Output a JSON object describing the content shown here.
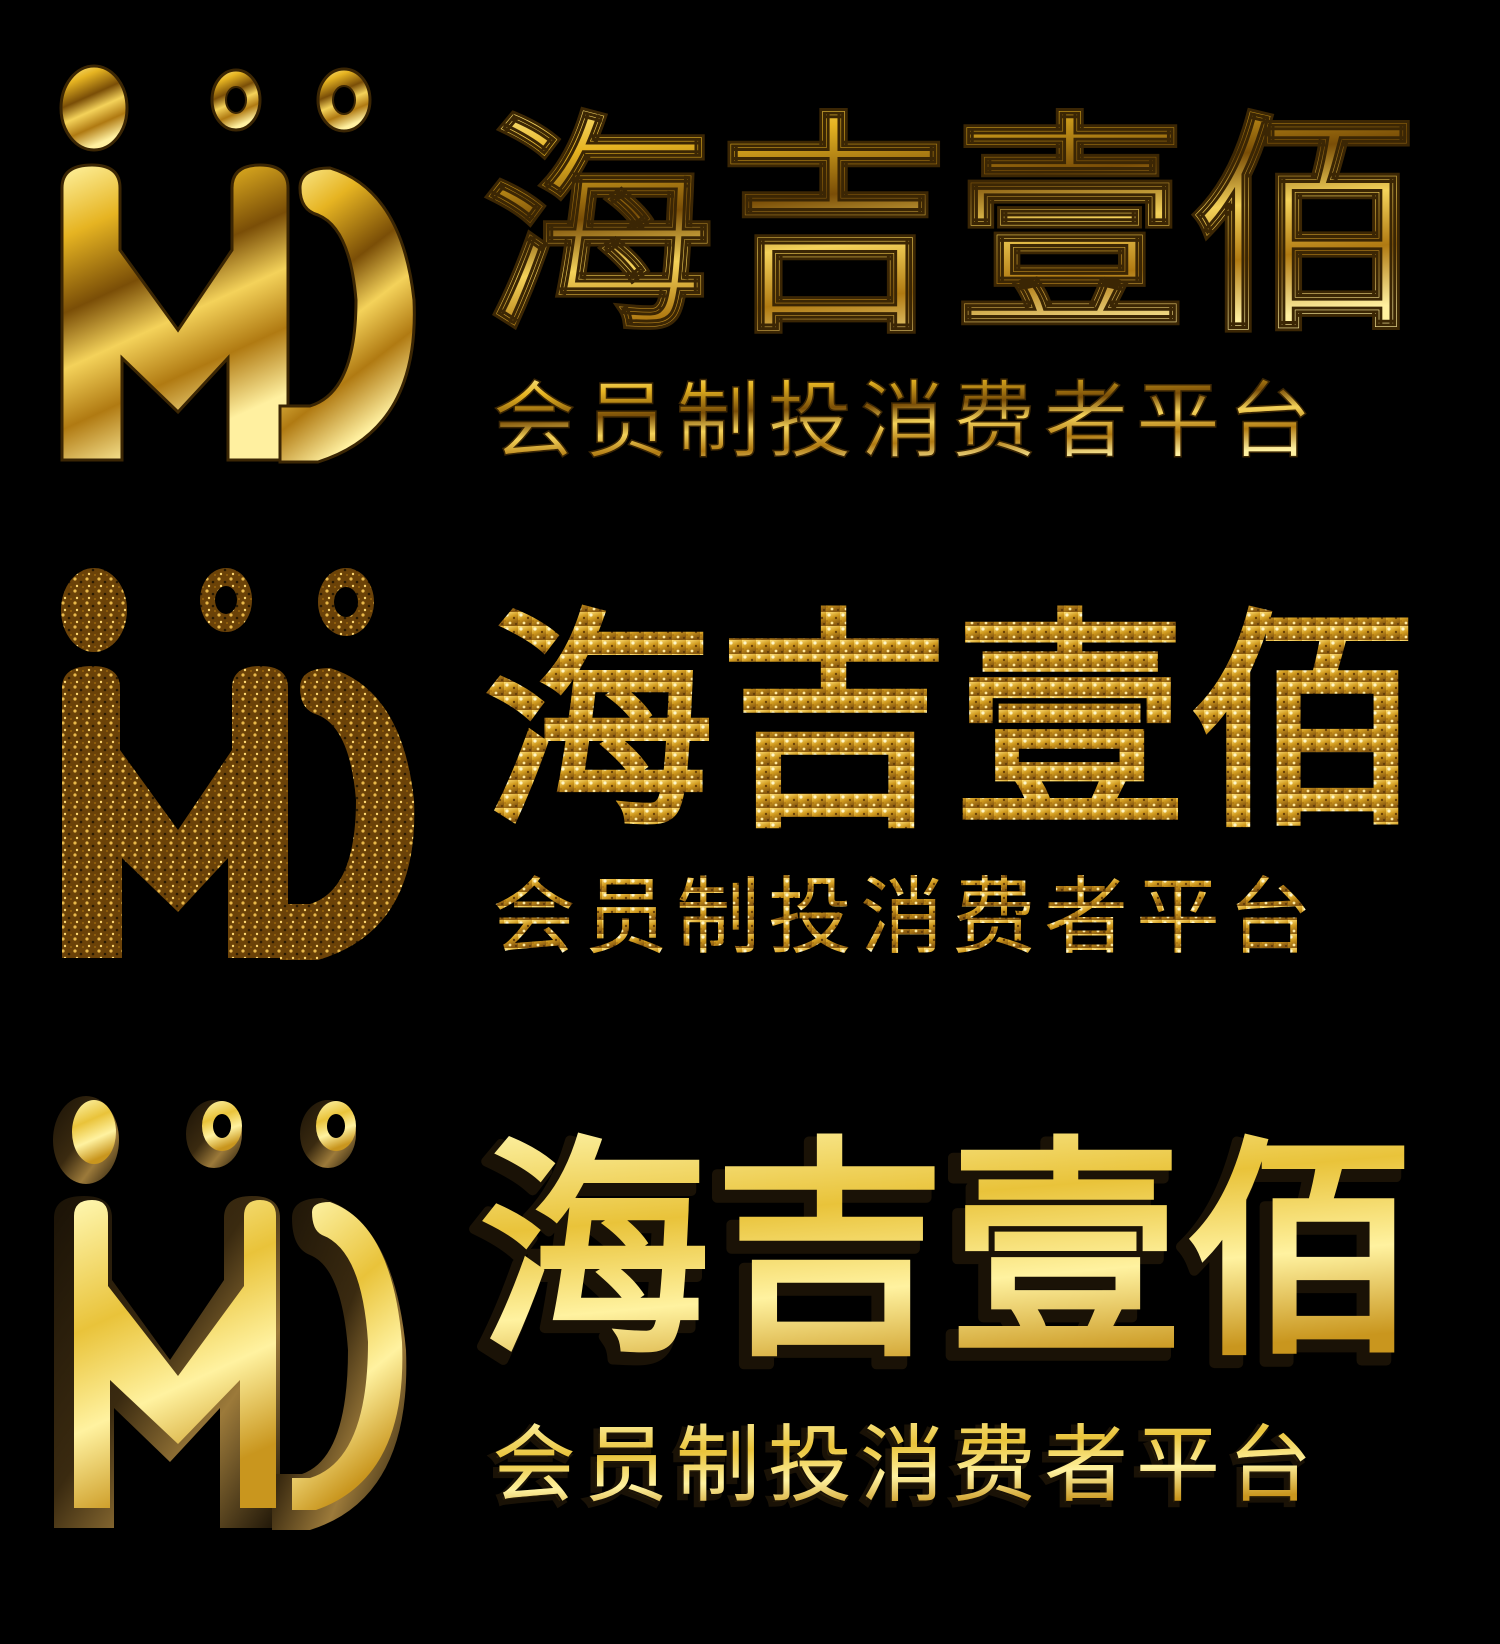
{
  "logos": [
    {
      "variant": "polished-gold",
      "title": "海吉壹佰",
      "tagline": "会员制投消费者平台",
      "colors": {
        "light": "#fff3a0",
        "mid": "#e6b422",
        "dark": "#7a4e07",
        "edge": "#3b2604"
      }
    },
    {
      "variant": "glitter-gold",
      "title": "海吉壹佰",
      "tagline": "会员制投消费者平台",
      "colors": {
        "light": "#ffe27a",
        "mid": "#d09a1e",
        "dark": "#6b4208",
        "edge": "#2a1a03"
      }
    },
    {
      "variant": "beveled-gold",
      "title": "海吉壹佰",
      "tagline": "会员制投消费者平台",
      "colors": {
        "light": "#fff7b0",
        "mid": "#e9c33a",
        "dark": "#3a2a10",
        "edge": "#1a1206"
      }
    }
  ],
  "emblem": {
    "icon": "hj-monogram-icon"
  }
}
